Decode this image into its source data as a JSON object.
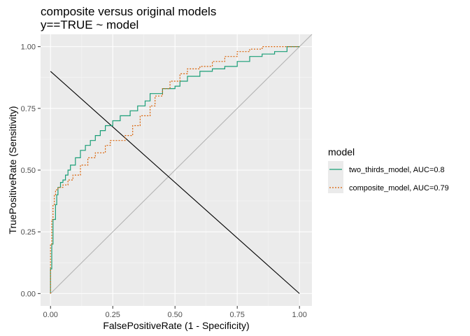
{
  "chart_data": {
    "type": "line",
    "title": "composite versus original models",
    "subtitle": "y==TRUE ~ model",
    "xlabel": "FalsePositiveRate (1 - Specificity)",
    "ylabel": "TruePositiveRate (Sensitivity)",
    "xlim": [
      -0.04,
      1.05
    ],
    "ylim": [
      -0.05,
      1.05
    ],
    "x_ticks": [
      0.0,
      0.25,
      0.5,
      0.75,
      1.0
    ],
    "x_tick_labels": [
      "0.00",
      "0.25",
      "0.50",
      "0.75",
      "1.00"
    ],
    "y_ticks": [
      0.0,
      0.25,
      0.5,
      0.75,
      1.0
    ],
    "y_tick_labels": [
      "0.00",
      "0.25",
      "0.50",
      "0.75",
      "1.00"
    ],
    "grid": true,
    "legend": {
      "title": "model",
      "position": "right"
    },
    "series": [
      {
        "name": "two_thirds_model, AUC=0.8",
        "color": "#1b9e77",
        "dash": "solid",
        "x": [
          0.0,
          0.0,
          0.005,
          0.01,
          0.01,
          0.02,
          0.025,
          0.03,
          0.04,
          0.05,
          0.06,
          0.07,
          0.08,
          0.1,
          0.12,
          0.14,
          0.16,
          0.18,
          0.2,
          0.22,
          0.25,
          0.28,
          0.32,
          0.35,
          0.38,
          0.4,
          0.45,
          0.5,
          0.52,
          0.55,
          0.6,
          0.65,
          0.7,
          0.72,
          0.75,
          0.8,
          0.85,
          0.9,
          0.95,
          1.0
        ],
        "y": [
          0.0,
          0.1,
          0.2,
          0.25,
          0.3,
          0.36,
          0.4,
          0.43,
          0.45,
          0.46,
          0.48,
          0.5,
          0.52,
          0.55,
          0.58,
          0.6,
          0.62,
          0.64,
          0.66,
          0.68,
          0.7,
          0.72,
          0.74,
          0.76,
          0.78,
          0.81,
          0.83,
          0.84,
          0.86,
          0.88,
          0.9,
          0.91,
          0.92,
          0.92,
          0.94,
          0.96,
          0.97,
          0.98,
          1.0,
          1.0
        ]
      },
      {
        "name": "composite_model, AUC=0.79",
        "color": "#d95f02",
        "dash": "dotted",
        "x": [
          0.0,
          0.0,
          0.005,
          0.01,
          0.015,
          0.02,
          0.03,
          0.05,
          0.07,
          0.09,
          0.12,
          0.15,
          0.18,
          0.22,
          0.24,
          0.28,
          0.3,
          0.33,
          0.36,
          0.4,
          0.42,
          0.45,
          0.48,
          0.52,
          0.55,
          0.6,
          0.65,
          0.7,
          0.75,
          0.8,
          0.85,
          0.9,
          0.95,
          1.0
        ],
        "y": [
          0.0,
          0.2,
          0.3,
          0.36,
          0.4,
          0.42,
          0.43,
          0.44,
          0.46,
          0.48,
          0.52,
          0.55,
          0.57,
          0.6,
          0.62,
          0.62,
          0.64,
          0.68,
          0.72,
          0.76,
          0.8,
          0.83,
          0.86,
          0.89,
          0.91,
          0.92,
          0.94,
          0.96,
          0.98,
          0.99,
          1.0,
          1.0,
          1.0,
          1.0
        ]
      }
    ],
    "reference_lines": [
      {
        "from": [
          0.0,
          0.0
        ],
        "to": [
          1.05,
          1.05
        ],
        "color": "#b3b3b3"
      },
      {
        "from": [
          0.0,
          0.9
        ],
        "to": [
          1.0,
          0.0
        ],
        "color": "#000000"
      }
    ]
  }
}
